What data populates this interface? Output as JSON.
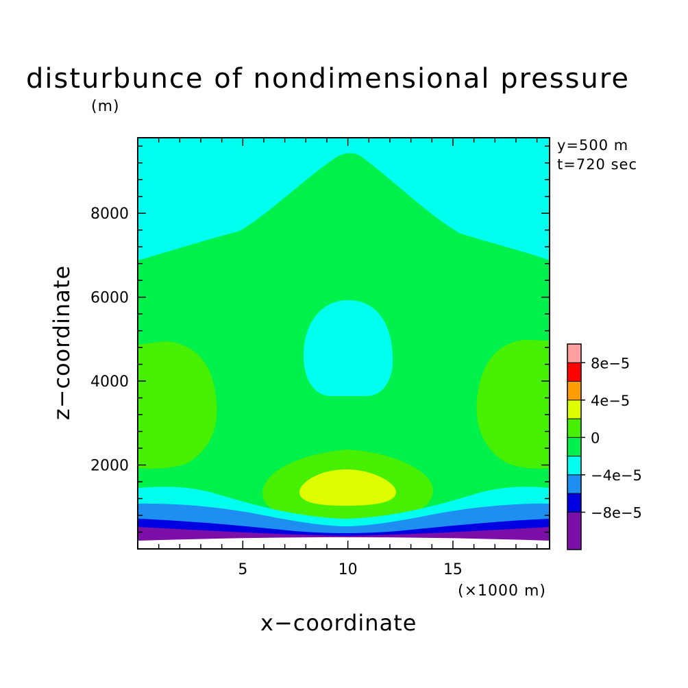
{
  "chart_data": {
    "type": "heatmap",
    "title": "disturbunce of nondimensional pressure",
    "yunit": "(m)",
    "annotations": [
      "y=500 m",
      "t=720 sec"
    ],
    "xlabel": "x−coordinate",
    "xunit": "(×1000 m)",
    "ylabel": "z−coordinate",
    "xlim": [
      0,
      19.6
    ],
    "ylim": [
      0,
      9800
    ],
    "xticks": [
      5,
      10,
      15
    ],
    "xtick_labels": [
      "5",
      "10",
      "15"
    ],
    "yticks": [
      2000,
      4000,
      6000,
      8000
    ],
    "ytick_labels": [
      "2000",
      "4000",
      "6000",
      "8000"
    ],
    "colorbar": {
      "levels": [
        -0.00012,
        -8e-05,
        -6e-05,
        -4e-05,
        -2e-05,
        0,
        2e-05,
        4e-05,
        6e-05,
        8e-05,
        0.0001
      ],
      "colors": [
        "#7b0fa8",
        "#0000e0",
        "#1e8ef0",
        "#00ffee",
        "#00f04c",
        "#46f000",
        "#ddff00",
        "#ff9d00",
        "#ff0000",
        "#ff9f9f"
      ],
      "labels": [
        "−8e−5",
        "−4e−5",
        "0",
        "4e−5",
        "8e−5"
      ],
      "label_values": [
        -8e-05,
        -4e-05,
        0,
        4e-05,
        8e-05
      ]
    },
    "regions": [
      {
        "level": "0 to 2e-5",
        "desc": "lateral bulges x~0-3.8 and x~16-19.6, z~2000-5100"
      },
      {
        "level": "0 to 2e-5",
        "desc": "dome above surface layers, x~5.8-14, z~700-2450"
      },
      {
        "level": "2e-5 to 4e-5",
        "desc": "core at x~10, z~1100-2000"
      },
      {
        "level": "-2e-5 to 0",
        "desc": "central cell x~8-12.3, z~3750-6050"
      },
      {
        "level": "-2e-5 to 0",
        "desc": "upper region above ~7000 m with peak to 9500 m at x~10"
      },
      {
        "level": "-2e-5 to 0",
        "desc": "thin layer near z~1500"
      },
      {
        "level": "-4e-5 to -2e-5",
        "desc": "layer near z~1100"
      },
      {
        "level": "-6e-5 to -4e-5",
        "desc": "layer near z~750"
      },
      {
        "level": "-8e-5 to -6e-5",
        "desc": "layer near z~500"
      }
    ]
  }
}
